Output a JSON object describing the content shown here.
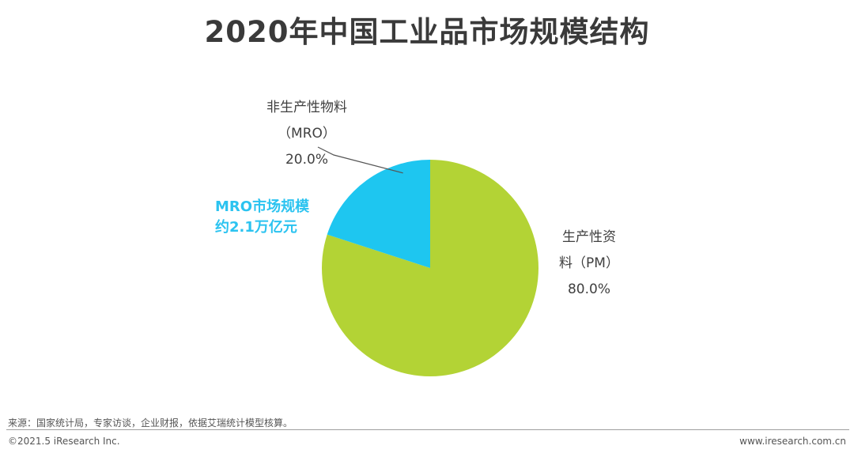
{
  "title": "2020年中国工业品市场规模结构",
  "chart_data": {
    "type": "pie",
    "slices": [
      {
        "label_lines": [
          "非生产性物料",
          "（MRO）"
        ],
        "value": 20.0,
        "value_label": "20.0%",
        "color": "#1ec6f0"
      },
      {
        "label_lines": [
          "生产性资",
          "料（PM）"
        ],
        "value": 80.0,
        "value_label": "80.0%",
        "color": "#b3d335"
      }
    ]
  },
  "callout": {
    "line1": "MRO市场规模",
    "line2": "约2.1万亿元"
  },
  "source": "来源：国家统计局，专家访谈，企业财报，依据艾瑞统计模型核算。",
  "footer": {
    "copyright": "©2021.5 iResearch Inc.",
    "website": "www.iresearch.com.cn"
  }
}
